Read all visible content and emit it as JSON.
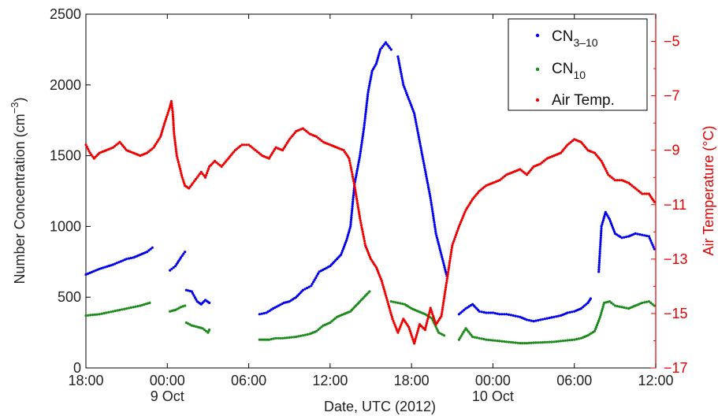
{
  "chart_data": {
    "type": "scatter",
    "title": "",
    "xlabel": "Date, UTC (2012)",
    "ylabel_left": {
      "text": "Number Concentration (cm",
      "sup": "−3",
      "close": ")"
    },
    "ylabel_right": "Air Temperature (°C)",
    "x_unit": "hours since 8 Oct 18:00",
    "xlim": [
      0,
      42
    ],
    "ylim_left": [
      0,
      2500
    ],
    "ylim_right": [
      -17,
      -4
    ],
    "x_ticks": [
      {
        "x": 0,
        "label": "18:00",
        "sub": ""
      },
      {
        "x": 6,
        "label": "00:00",
        "sub": "9 Oct"
      },
      {
        "x": 12,
        "label": "06:00",
        "sub": ""
      },
      {
        "x": 18,
        "label": "12:00",
        "sub": ""
      },
      {
        "x": 24,
        "label": "18:00",
        "sub": ""
      },
      {
        "x": 30,
        "label": "00:00",
        "sub": "10 Oct"
      },
      {
        "x": 36,
        "label": "06:00",
        "sub": ""
      },
      {
        "x": 42,
        "label": "12:00",
        "sub": ""
      }
    ],
    "y_ticks_left": [
      "0",
      "500",
      "1000",
      "1500",
      "2000",
      "2500"
    ],
    "y_ticks_right": [
      "−5",
      "−7",
      "−9",
      "−11",
      "−13",
      "−15",
      "−17"
    ],
    "legend_position": "top-right",
    "series": [
      {
        "name": "CN",
        "name_sub": "3–10",
        "color": "#0000ee",
        "axis": "left",
        "segments": [
          [
            [
              0,
              660
            ],
            [
              1,
              700
            ],
            [
              2,
              730
            ],
            [
              3,
              770
            ],
            [
              3.5,
              780
            ],
            [
              4,
              800
            ],
            [
              4.5,
              820
            ],
            [
              4.9,
              850
            ]
          ],
          [
            [
              6.2,
              690
            ],
            [
              6.6,
              720
            ],
            [
              7,
              780
            ],
            [
              7.3,
              820
            ]
          ],
          [
            [
              7.4,
              550
            ],
            [
              7.8,
              540
            ],
            [
              8.2,
              470
            ],
            [
              8.5,
              450
            ],
            [
              8.8,
              480
            ],
            [
              9.1,
              460
            ]
          ],
          [
            [
              12.8,
              380
            ],
            [
              13.3,
              390
            ],
            [
              13.8,
              420
            ],
            [
              14.2,
              440
            ],
            [
              14.6,
              460
            ],
            [
              15,
              470
            ],
            [
              15.5,
              500
            ],
            [
              16,
              550
            ],
            [
              16.6,
              580
            ],
            [
              17.2,
              680
            ],
            [
              17.6,
              700
            ],
            [
              18,
              720
            ],
            [
              18.4,
              760
            ],
            [
              18.8,
              800
            ],
            [
              19.2,
              900
            ],
            [
              19.5,
              1000
            ],
            [
              19.8,
              1300
            ],
            [
              20.2,
              1500
            ],
            [
              20.5,
              1700
            ],
            [
              20.8,
              1950
            ],
            [
              21.1,
              2100
            ],
            [
              21.4,
              2150
            ],
            [
              21.7,
              2250
            ],
            [
              22.1,
              2300
            ],
            [
              22.5,
              2250
            ]
          ],
          [
            [
              23,
              2200
            ],
            [
              23.4,
              2000
            ],
            [
              23.8,
              1900
            ],
            [
              24.2,
              1800
            ],
            [
              24.6,
              1600
            ],
            [
              25,
              1400
            ],
            [
              25.4,
              1200
            ],
            [
              25.8,
              950
            ],
            [
              26.2,
              800
            ],
            [
              26.6,
              650
            ]
          ],
          [
            [
              27.5,
              380
            ],
            [
              28,
              420
            ],
            [
              28.5,
              450
            ],
            [
              29,
              400
            ],
            [
              29.5,
              390
            ],
            [
              30,
              390
            ],
            [
              30.5,
              380
            ],
            [
              31,
              380
            ],
            [
              31.5,
              370
            ],
            [
              32,
              360
            ],
            [
              32.5,
              340
            ],
            [
              33,
              330
            ],
            [
              33.5,
              340
            ],
            [
              34,
              350
            ],
            [
              34.5,
              360
            ],
            [
              35,
              370
            ],
            [
              35.5,
              390
            ],
            [
              36,
              400
            ],
            [
              36.5,
              420
            ],
            [
              37,
              460
            ],
            [
              37.2,
              490
            ]
          ],
          [
            [
              37.8,
              680
            ],
            [
              38,
              1000
            ],
            [
              38.3,
              1100
            ],
            [
              38.6,
              1050
            ],
            [
              39,
              950
            ],
            [
              39.5,
              920
            ],
            [
              40,
              930
            ],
            [
              40.5,
              950
            ],
            [
              41,
              940
            ],
            [
              41.5,
              930
            ],
            [
              41.9,
              840
            ]
          ]
        ]
      },
      {
        "name": "CN",
        "name_sub": "10",
        "color": "#1a8a1a",
        "axis": "left",
        "segments": [
          [
            [
              0,
              370
            ],
            [
              1,
              380
            ],
            [
              2,
              400
            ],
            [
              3,
              420
            ],
            [
              4,
              440
            ],
            [
              4.7,
              460
            ]
          ],
          [
            [
              6.2,
              400
            ],
            [
              6.6,
              410
            ],
            [
              7,
              430
            ],
            [
              7.3,
              440
            ]
          ],
          [
            [
              7.4,
              320
            ],
            [
              7.8,
              300
            ],
            [
              8.2,
              290
            ],
            [
              8.6,
              280
            ],
            [
              9,
              250
            ],
            [
              9.1,
              270
            ]
          ],
          [
            [
              12.8,
              200
            ],
            [
              13.5,
              200
            ],
            [
              14,
              210
            ],
            [
              14.5,
              210
            ],
            [
              15,
              215
            ],
            [
              15.5,
              220
            ],
            [
              16,
              230
            ],
            [
              16.5,
              240
            ],
            [
              17,
              260
            ],
            [
              17.5,
              300
            ],
            [
              18,
              320
            ],
            [
              18.5,
              360
            ],
            [
              19,
              380
            ],
            [
              19.5,
              400
            ],
            [
              20,
              450
            ],
            [
              20.5,
              500
            ],
            [
              20.9,
              540
            ]
          ],
          [
            [
              22.5,
              470
            ],
            [
              23,
              460
            ],
            [
              23.5,
              450
            ],
            [
              24,
              420
            ],
            [
              24.5,
              400
            ],
            [
              25,
              380
            ],
            [
              25.5,
              350
            ],
            [
              26,
              250
            ],
            [
              26.4,
              230
            ]
          ],
          [
            [
              27.5,
              200
            ],
            [
              28,
              280
            ],
            [
              28.5,
              220
            ],
            [
              29,
              210
            ],
            [
              29.5,
              200
            ],
            [
              30,
              195
            ],
            [
              30.5,
              190
            ],
            [
              31,
              185
            ],
            [
              31.5,
              180
            ],
            [
              32,
              175
            ],
            [
              32.5,
              175
            ],
            [
              33,
              178
            ],
            [
              33.5,
              180
            ],
            [
              34,
              182
            ],
            [
              34.5,
              185
            ],
            [
              35,
              190
            ],
            [
              35.5,
              195
            ],
            [
              36,
              200
            ],
            [
              36.5,
              210
            ],
            [
              37,
              230
            ],
            [
              37.5,
              260
            ],
            [
              37.9,
              360
            ],
            [
              38.2,
              460
            ],
            [
              38.6,
              470
            ],
            [
              39,
              440
            ],
            [
              39.5,
              430
            ],
            [
              40,
              420
            ],
            [
              40.5,
              440
            ],
            [
              41,
              460
            ],
            [
              41.5,
              470
            ],
            [
              41.9,
              440
            ]
          ]
        ]
      },
      {
        "name": "Air Temp.",
        "name_sub": "",
        "color": "#ee0000",
        "axis": "right",
        "segments": [
          [
            [
              0,
              -8.8
            ],
            [
              0.3,
              -9.1
            ],
            [
              0.6,
              -9.3
            ],
            [
              1,
              -9.1
            ],
            [
              1.5,
              -9
            ],
            [
              2,
              -8.9
            ],
            [
              2.5,
              -8.7
            ],
            [
              3,
              -9
            ],
            [
              3.5,
              -9.1
            ],
            [
              4,
              -9.2
            ],
            [
              4.5,
              -9.1
            ],
            [
              5,
              -8.9
            ],
            [
              5.5,
              -8.5
            ],
            [
              5.8,
              -8
            ],
            [
              6,
              -7.7
            ],
            [
              6.2,
              -7.4
            ],
            [
              6.3,
              -7.2
            ],
            [
              6.4,
              -7.6
            ],
            [
              6.5,
              -8.4
            ],
            [
              6.7,
              -9.2
            ],
            [
              6.9,
              -9.6
            ],
            [
              7.1,
              -10
            ],
            [
              7.3,
              -10.3
            ],
            [
              7.6,
              -10.4
            ],
            [
              7.9,
              -10.2
            ],
            [
              8.2,
              -10
            ],
            [
              8.5,
              -9.8
            ],
            [
              8.8,
              -10
            ],
            [
              9.1,
              -9.6
            ],
            [
              9.5,
              -9.4
            ],
            [
              10,
              -9.6
            ],
            [
              10.5,
              -9.3
            ],
            [
              11,
              -9
            ],
            [
              11.5,
              -8.8
            ],
            [
              12,
              -8.8
            ],
            [
              12.5,
              -9
            ],
            [
              13,
              -9.2
            ],
            [
              13.5,
              -9.3
            ],
            [
              14,
              -8.9
            ],
            [
              14.5,
              -9
            ],
            [
              15,
              -8.6
            ],
            [
              15.5,
              -8.3
            ],
            [
              16,
              -8.2
            ],
            [
              16.5,
              -8.4
            ],
            [
              17,
              -8.5
            ],
            [
              17.5,
              -8.7
            ],
            [
              18,
              -8.8
            ],
            [
              18.5,
              -8.9
            ],
            [
              19,
              -9
            ],
            [
              19.4,
              -9.3
            ],
            [
              19.8,
              -10.3
            ],
            [
              20.2,
              -11.5
            ],
            [
              20.6,
              -12.5
            ],
            [
              21,
              -13
            ],
            [
              21.4,
              -13.3
            ],
            [
              21.8,
              -13.8
            ],
            [
              22.2,
              -14.5
            ],
            [
              22.6,
              -15.2
            ],
            [
              23,
              -15.7
            ],
            [
              23.4,
              -15.2
            ],
            [
              23.8,
              -15.5
            ],
            [
              24.2,
              -16.1
            ],
            [
              24.6,
              -15.4
            ],
            [
              25,
              -15.6
            ],
            [
              25.4,
              -14.8
            ],
            [
              25.8,
              -15.4
            ],
            [
              26.2,
              -15.1
            ],
            [
              26.6,
              -13.8
            ],
            [
              27,
              -12.5
            ],
            [
              27.5,
              -11.8
            ],
            [
              28,
              -11.2
            ],
            [
              28.5,
              -10.8
            ],
            [
              29,
              -10.5
            ],
            [
              29.5,
              -10.3
            ],
            [
              30,
              -10.2
            ],
            [
              30.5,
              -10.1
            ],
            [
              31,
              -9.9
            ],
            [
              31.5,
              -9.8
            ],
            [
              32,
              -9.7
            ],
            [
              32.5,
              -9.9
            ],
            [
              33,
              -9.6
            ],
            [
              33.5,
              -9.5
            ],
            [
              34,
              -9.3
            ],
            [
              34.5,
              -9.2
            ],
            [
              35,
              -9.1
            ],
            [
              35.5,
              -8.8
            ],
            [
              36,
              -8.6
            ],
            [
              36.5,
              -8.7
            ],
            [
              37,
              -9
            ],
            [
              37.5,
              -9.1
            ],
            [
              38,
              -9.4
            ],
            [
              38.5,
              -9.9
            ],
            [
              39,
              -10.1
            ],
            [
              39.5,
              -10.1
            ],
            [
              40,
              -10.2
            ],
            [
              40.5,
              -10.4
            ],
            [
              41,
              -10.6
            ],
            [
              41.5,
              -10.6
            ],
            [
              41.9,
              -10.9
            ]
          ]
        ]
      }
    ]
  }
}
